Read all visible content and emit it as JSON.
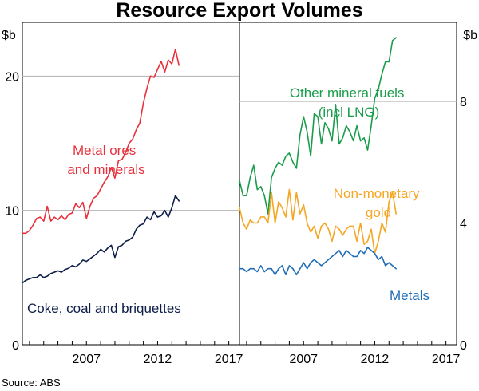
{
  "chart_data": {
    "type": "line",
    "title": "Resource Export Volumes",
    "source": "Source:   ABS",
    "panels": [
      {
        "id": "left",
        "unit": "$b",
        "ylim": [
          0,
          24
        ],
        "yticks": [
          0,
          10,
          20
        ],
        "ytick_labels": [
          "0",
          "10",
          "20"
        ],
        "xlim": [
          2002.5,
          2017.75
        ],
        "xticks": [
          2007,
          2012,
          2017
        ],
        "xtick_labels": [
          "2007",
          "2012",
          "2017"
        ],
        "series": [
          {
            "name": "Metal ores and minerals",
            "label_lines": [
              "Metal ores",
              "and minerals"
            ],
            "color": "#e8313c",
            "start": 2002.5,
            "step": 0.25,
            "values": [
              8.3,
              8.3,
              8.5,
              8.9,
              9.4,
              9.5,
              9.2,
              10.3,
              9.2,
              9.5,
              9.3,
              9.6,
              9.3,
              9.7,
              9.8,
              10.5,
              10.2,
              10.6,
              9.4,
              10.3,
              10.9,
              11.1,
              11.6,
              12.1,
              12.5,
              13.2,
              12.4,
              13.7,
              13.8,
              14.3,
              15.0,
              15.3,
              16.0,
              16.5,
              18.0,
              19.1,
              20.0,
              19.9,
              20.5,
              21.1,
              20.3,
              21.2,
              20.9,
              22.0,
              20.8
            ]
          },
          {
            "name": "Coke, coal and briquettes",
            "label_lines": [
              "Coke, coal and briquettes"
            ],
            "color": "#0d1d49",
            "start": 2002.5,
            "step": 0.25,
            "values": [
              4.6,
              4.8,
              4.9,
              5.0,
              5.0,
              5.2,
              5.0,
              5.1,
              5.3,
              5.4,
              5.5,
              5.4,
              5.6,
              5.7,
              5.9,
              5.8,
              6.0,
              6.3,
              6.2,
              6.4,
              6.6,
              6.8,
              7.1,
              6.9,
              7.2,
              7.4,
              6.5,
              7.3,
              7.4,
              7.7,
              7.8,
              8.0,
              8.6,
              8.9,
              9.0,
              9.5,
              9.3,
              9.9,
              9.5,
              9.6,
              10.0,
              9.5,
              10.2,
              11.1,
              10.7
            ]
          }
        ]
      },
      {
        "id": "right",
        "unit": "$b",
        "ylim": [
          0,
          10.6
        ],
        "yticks": [
          0,
          4,
          8
        ],
        "ytick_labels": [
          "0",
          "4",
          "8"
        ],
        "xlim": [
          2002.5,
          2017.75
        ],
        "xticks": [
          2007,
          2012,
          2017
        ],
        "xtick_labels": [
          "2007",
          "2012",
          "2017"
        ],
        "series": [
          {
            "name": "Other mineral fuels (incl LNG)",
            "label_lines": [
              "Other mineral fuels",
              "(incl LNG)"
            ],
            "color": "#1a9d4b",
            "start": 2002.5,
            "step": 0.25,
            "values": [
              5.4,
              4.9,
              4.9,
              5.5,
              5.9,
              5.1,
              5.2,
              4.9,
              4.3,
              5.5,
              5.8,
              6.0,
              5.9,
              6.2,
              6.3,
              6.0,
              5.8,
              6.9,
              7.5,
              7.0,
              6.2,
              7.6,
              7.5,
              6.6,
              7.3,
              7.1,
              6.7,
              7.9,
              6.6,
              6.8,
              7.2,
              7.0,
              6.7,
              7.2,
              6.7,
              6.8,
              6.4,
              7.2,
              8.1,
              8.4,
              8.9,
              9.3,
              9.3,
              10.0,
              10.1
            ]
          },
          {
            "name": "Non-monetary gold",
            "label_lines": [
              "Non-monetary",
              "gold"
            ],
            "color": "#f5a623",
            "start": 2002.5,
            "step": 0.25,
            "values": [
              4.5,
              4.0,
              3.8,
              4.1,
              4.0,
              4.0,
              4.2,
              4.2,
              4.0,
              5.0,
              4.0,
              4.7,
              4.5,
              4.2,
              5.1,
              4.1,
              5.0,
              4.3,
              4.6,
              4.0,
              3.7,
              3.9,
              3.5,
              3.9,
              4.0,
              3.8,
              3.4,
              3.9,
              3.8,
              3.6,
              3.8,
              3.9,
              3.9,
              3.4,
              4.0,
              3.3,
              3.4,
              3.8,
              3.0,
              3.4,
              4.0,
              3.7,
              4.7,
              5.0,
              4.3
            ]
          },
          {
            "name": "Metals",
            "label_lines": [
              "Metals"
            ],
            "color": "#1f6db5",
            "start": 2002.5,
            "step": 0.25,
            "values": [
              2.5,
              2.5,
              2.4,
              2.5,
              2.5,
              2.4,
              2.6,
              2.4,
              2.5,
              2.5,
              2.3,
              2.5,
              2.6,
              2.3,
              2.6,
              2.5,
              2.3,
              2.5,
              2.7,
              2.5,
              2.7,
              2.8,
              2.7,
              2.6,
              2.7,
              2.8,
              2.9,
              3.0,
              3.1,
              2.9,
              3.1,
              3.0,
              2.9,
              2.9,
              3.1,
              3.0,
              3.2,
              3.1,
              3.0,
              2.8,
              2.9,
              2.6,
              2.7,
              2.6,
              2.5
            ]
          }
        ]
      }
    ]
  }
}
